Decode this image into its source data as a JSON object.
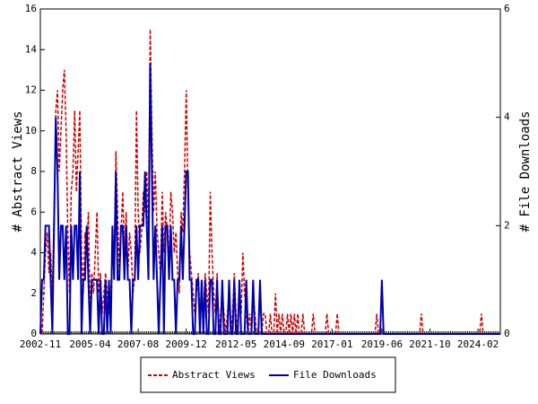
{
  "chart_data": {
    "type": "line",
    "y_label": "# Abstract Views",
    "y2_label": "# File Downloads",
    "x": [
      "2002-11",
      "2002-12",
      "2003-01",
      "2003-02",
      "2003-03",
      "2003-04",
      "2003-05",
      "2003-06",
      "2003-07",
      "2003-08",
      "2003-09",
      "2003-10",
      "2003-11",
      "2003-12",
      "2004-01",
      "2004-02",
      "2004-03",
      "2004-04",
      "2004-05",
      "2004-06",
      "2004-07",
      "2004-08",
      "2004-09",
      "2004-10",
      "2004-11",
      "2004-12",
      "2005-01",
      "2005-02",
      "2005-03",
      "2005-04",
      "2005-05",
      "2005-06",
      "2005-07",
      "2005-08",
      "2005-09",
      "2005-10",
      "2005-11",
      "2005-12",
      "2006-01",
      "2006-02",
      "2006-03",
      "2006-04",
      "2006-05",
      "2006-06",
      "2006-07",
      "2006-08",
      "2006-09",
      "2006-10",
      "2006-11",
      "2006-12",
      "2007-01",
      "2007-02",
      "2007-03",
      "2007-04",
      "2007-05",
      "2007-06",
      "2007-07",
      "2007-08",
      "2007-09",
      "2007-10",
      "2007-11",
      "2007-12",
      "2008-01",
      "2008-02",
      "2008-03",
      "2008-04",
      "2008-05",
      "2008-06",
      "2008-07",
      "2008-08",
      "2008-09",
      "2008-10",
      "2008-11",
      "2008-12",
      "2009-01",
      "2009-02",
      "2009-03",
      "2009-04",
      "2009-05",
      "2009-06",
      "2009-07",
      "2009-08",
      "2009-09",
      "2009-10",
      "2009-11",
      "2009-12",
      "2010-01",
      "2010-02",
      "2010-03",
      "2010-04",
      "2010-05",
      "2010-06",
      "2010-07",
      "2010-08",
      "2010-09",
      "2010-10",
      "2010-11",
      "2010-12",
      "2011-01",
      "2011-02",
      "2011-03",
      "2011-04",
      "2011-05",
      "2011-06",
      "2011-07",
      "2011-08",
      "2011-09",
      "2011-10",
      "2011-11",
      "2011-12",
      "2012-01",
      "2012-02",
      "2012-03",
      "2012-04",
      "2012-05",
      "2012-06",
      "2012-07",
      "2012-08",
      "2012-09",
      "2012-10",
      "2012-11",
      "2012-12",
      "2013-01",
      "2013-02",
      "2013-03",
      "2013-04",
      "2013-05",
      "2013-06",
      "2013-07",
      "2013-08",
      "2013-09",
      "2013-10",
      "2013-11",
      "2013-12",
      "2014-01",
      "2014-02",
      "2014-03",
      "2014-04",
      "2014-05",
      "2014-06",
      "2014-07",
      "2014-08",
      "2014-09",
      "2014-10",
      "2014-11",
      "2014-12",
      "2015-01",
      "2015-02",
      "2015-03",
      "2015-04",
      "2015-05",
      "2015-06",
      "2015-07",
      "2015-08",
      "2015-09",
      "2015-10",
      "2015-11",
      "2015-12",
      "2016-01",
      "2016-02",
      "2016-03",
      "2016-04",
      "2016-05",
      "2016-06",
      "2016-07",
      "2016-08",
      "2016-09",
      "2016-10",
      "2016-11",
      "2016-12",
      "2017-01",
      "2017-02",
      "2017-03",
      "2017-04",
      "2017-05",
      "2017-06",
      "2017-07",
      "2017-08",
      "2017-09",
      "2017-10",
      "2017-11",
      "2017-12",
      "2018-01",
      "2018-02",
      "2018-03",
      "2018-04",
      "2018-05",
      "2018-06",
      "2018-07",
      "2018-08",
      "2018-09",
      "2018-10",
      "2018-11",
      "2018-12",
      "2019-01",
      "2019-02",
      "2019-03",
      "2019-04",
      "2019-05",
      "2019-06",
      "2019-07",
      "2019-08",
      "2019-09",
      "2019-10",
      "2019-11",
      "2019-12",
      "2020-01",
      "2020-02",
      "2020-03",
      "2020-04",
      "2020-05",
      "2020-06",
      "2020-07",
      "2020-08",
      "2020-09",
      "2020-10",
      "2020-11",
      "2020-12",
      "2021-01",
      "2021-02",
      "2021-03",
      "2021-04",
      "2021-05",
      "2021-06",
      "2021-07",
      "2021-08",
      "2021-09",
      "2021-10",
      "2021-11",
      "2021-12",
      "2022-01",
      "2022-02",
      "2022-03",
      "2022-04",
      "2022-05",
      "2022-06",
      "2022-07",
      "2022-08",
      "2022-09",
      "2022-10",
      "2022-11",
      "2022-12",
      "2023-01",
      "2023-02",
      "2023-03",
      "2023-04",
      "2023-05",
      "2023-06",
      "2023-07",
      "2023-08",
      "2023-09",
      "2023-10",
      "2023-11",
      "2023-12",
      "2024-01",
      "2024-02",
      "2024-03",
      "2024-04",
      "2024-05",
      "2024-06",
      "2024-07",
      "2024-08",
      "2024-09",
      "2024-10",
      "2024-11",
      "2024-12",
      "2025-01",
      "2025-02",
      "2025-03"
    ],
    "xticks": [
      "2002-11",
      "2005-04",
      "2007-08",
      "2009-12",
      "2012-05",
      "2014-09",
      "2017-01",
      "2019-06",
      "2021-10",
      "2024-02"
    ],
    "ylim": [
      0,
      16
    ],
    "yticks": [
      0,
      2,
      4,
      6,
      8,
      10,
      12,
      14,
      16
    ],
    "y2lim": [
      0,
      6
    ],
    "y2ticks": [
      0,
      2,
      4,
      6
    ],
    "series": [
      {
        "name": "Abstract Views",
        "color": "#cc0000",
        "values": [
          1,
          0,
          2,
          4,
          5,
          3,
          4,
          2,
          6,
          11,
          12,
          8,
          10,
          12,
          13,
          10,
          5,
          2,
          7,
          8,
          11,
          7,
          9,
          11,
          4,
          2,
          5,
          4,
          6,
          1,
          3,
          2,
          4,
          6,
          2,
          3,
          1,
          2,
          3,
          2,
          1,
          2,
          4,
          3,
          9,
          6,
          3,
          5,
          7,
          4,
          6,
          3,
          5,
          4,
          2,
          3,
          11,
          6,
          4,
          5,
          7,
          6,
          8,
          5,
          15,
          10,
          6,
          8,
          5,
          4,
          3,
          7,
          4,
          6,
          5,
          3,
          7,
          6,
          4,
          5,
          3,
          2,
          6,
          5,
          8,
          12,
          7,
          4,
          3,
          2,
          1,
          2,
          3,
          1,
          2,
          1,
          3,
          2,
          1,
          7,
          4,
          2,
          1,
          3,
          0,
          1,
          2,
          1,
          0,
          1,
          2,
          0,
          1,
          3,
          1,
          0,
          2,
          1,
          4,
          2,
          1,
          0,
          1,
          0,
          2,
          1,
          0,
          0,
          2,
          0,
          1,
          1,
          0,
          0,
          1,
          0,
          0,
          2,
          0,
          1,
          0,
          1,
          0,
          0,
          1,
          0,
          1,
          0,
          1,
          0,
          1,
          0,
          0,
          1,
          0,
          0,
          0,
          0,
          0,
          1,
          0,
          0,
          0,
          0,
          0,
          0,
          0,
          1,
          0,
          0,
          0,
          0,
          0,
          1,
          0,
          0,
          0,
          0,
          0,
          0,
          0,
          0,
          0,
          0,
          0,
          0,
          0,
          0,
          0,
          0,
          0,
          0,
          0,
          0,
          0,
          0,
          1,
          0,
          0,
          0,
          0,
          0,
          0,
          0,
          0,
          0,
          0,
          0,
          0,
          0,
          0,
          0,
          0,
          0,
          0,
          0,
          0,
          0,
          0,
          0,
          0,
          0,
          1,
          0,
          0,
          0,
          0,
          0,
          0,
          0,
          0,
          0,
          0,
          0,
          0,
          0,
          0,
          0,
          0,
          0,
          0,
          0,
          0,
          0,
          0,
          0,
          0,
          0,
          0,
          0,
          0,
          0,
          0,
          0,
          0,
          0,
          0,
          1,
          0,
          0,
          0,
          0,
          0,
          0,
          0,
          0,
          0,
          0,
          0
        ]
      },
      {
        "name": "File Downloads",
        "color": "#0000aa",
        "axis": "y2",
        "values": [
          0,
          1,
          1,
          2,
          2,
          2,
          1,
          0,
          2,
          4,
          3,
          1,
          2,
          2,
          1,
          2,
          0,
          0,
          2,
          1,
          2,
          2,
          1,
          3,
          0,
          1,
          1,
          2,
          1,
          0,
          1,
          1,
          1,
          1,
          0,
          1,
          0,
          0,
          1,
          0,
          1,
          0,
          2,
          1,
          3,
          1,
          1,
          2,
          2,
          1,
          2,
          1,
          1,
          0,
          1,
          1,
          2,
          1,
          2,
          2,
          2,
          3,
          2,
          1,
          5,
          3,
          1,
          2,
          1,
          0,
          1,
          2,
          0,
          2,
          2,
          1,
          2,
          1,
          1,
          0,
          1,
          1,
          2,
          1,
          2,
          3,
          3,
          1,
          1,
          0,
          0,
          1,
          1,
          0,
          1,
          0,
          1,
          0,
          0,
          1,
          1,
          0,
          0,
          1,
          0,
          0,
          1,
          0,
          0,
          0,
          1,
          0,
          0,
          1,
          0,
          0,
          1,
          0,
          0,
          0,
          1,
          0,
          0,
          0,
          1,
          0,
          0,
          0,
          1,
          0,
          0,
          0,
          0,
          0,
          0,
          0,
          0,
          0,
          0,
          0,
          0,
          0,
          0,
          0,
          0,
          0,
          0,
          0,
          0,
          0,
          0,
          0,
          0,
          0,
          0,
          0,
          0,
          0,
          0,
          0,
          0,
          0,
          0,
          0,
          0,
          0,
          0,
          0,
          0,
          0,
          0,
          0,
          0,
          0,
          0,
          0,
          0,
          0,
          0,
          0,
          0,
          0,
          0,
          0,
          0,
          0,
          0,
          0,
          0,
          0,
          0,
          0,
          0,
          0,
          0,
          0,
          0,
          0,
          0,
          1,
          0,
          0,
          0,
          0,
          0,
          0,
          0,
          0,
          0,
          0,
          0,
          0,
          0,
          0,
          0,
          0,
          0,
          0,
          0,
          0,
          0,
          0,
          0,
          0,
          0,
          0,
          0,
          0,
          0,
          0,
          0,
          0,
          0,
          0,
          0,
          0,
          0,
          0,
          0,
          0,
          0,
          0,
          0,
          0,
          0,
          0,
          0,
          0,
          0,
          0,
          0,
          0,
          0,
          0,
          0,
          0,
          0,
          0,
          0,
          0,
          0,
          0,
          0,
          0,
          0,
          0,
          0,
          0,
          0
        ]
      }
    ]
  }
}
